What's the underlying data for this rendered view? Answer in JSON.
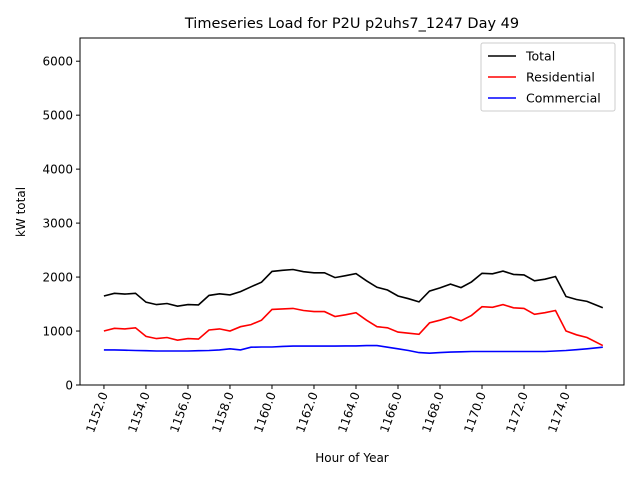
{
  "chart_data": {
    "type": "line",
    "title": "Timeseries Load for P2U p2uhs7_1247  Day 49",
    "xlabel": "Hour of Year",
    "ylabel": "kW total",
    "xlim": [
      1150.86,
      1176.76
    ],
    "ylim": [
      0,
      6430
    ],
    "xticks": [
      1152,
      1154,
      1156,
      1158,
      1160,
      1162,
      1164,
      1166,
      1168,
      1170,
      1172,
      1174
    ],
    "xtick_labels": [
      "1152.0",
      "1154.0",
      "1156.0",
      "1158.0",
      "1160.0",
      "1162.0",
      "1164.0",
      "1166.0",
      "1168.0",
      "1170.0",
      "1172.0",
      "1174.0"
    ],
    "yticks": [
      0,
      1000,
      2000,
      3000,
      4000,
      5000,
      6000
    ],
    "ytick_labels": [
      "0",
      "1000",
      "2000",
      "3000",
      "4000",
      "5000",
      "6000"
    ],
    "grid": false,
    "legend_position": "top-right",
    "x": [
      1152,
      1152.5,
      1153,
      1153.5,
      1154,
      1154.5,
      1155,
      1155.5,
      1156,
      1156.5,
      1157,
      1157.5,
      1158,
      1158.5,
      1159,
      1159.5,
      1160,
      1160.5,
      1161,
      1161.5,
      1162,
      1162.5,
      1163,
      1163.5,
      1164,
      1164.5,
      1165,
      1165.5,
      1166,
      1166.5,
      1167,
      1167.5,
      1168,
      1168.5,
      1169,
      1169.5,
      1170,
      1170.5,
      1171,
      1171.5,
      1172,
      1172.5,
      1173,
      1173.5,
      1174,
      1174.5,
      1175,
      1175.75
    ],
    "series": [
      {
        "name": "Total",
        "color": "#000000",
        "values": [
          1650,
          1700,
          1685,
          1700,
          1535,
          1490,
          1510,
          1460,
          1490,
          1485,
          1660,
          1690,
          1670,
          1730,
          1820,
          1905,
          2105,
          2125,
          2140,
          2100,
          2080,
          2080,
          1990,
          2025,
          2065,
          1930,
          1810,
          1760,
          1650,
          1600,
          1540,
          1740,
          1800,
          1870,
          1805,
          1910,
          2070,
          2060,
          2110,
          2050,
          2040,
          1930,
          1960,
          2010,
          1640,
          1585,
          1550,
          1430
        ]
      },
      {
        "name": "Residential",
        "color": "#ff0000",
        "values": [
          1000,
          1050,
          1040,
          1060,
          900,
          860,
          880,
          830,
          860,
          850,
          1020,
          1040,
          1000,
          1080,
          1120,
          1200,
          1400,
          1410,
          1420,
          1380,
          1360,
          1360,
          1270,
          1300,
          1340,
          1200,
          1080,
          1060,
          980,
          960,
          940,
          1150,
          1200,
          1260,
          1190,
          1290,
          1450,
          1440,
          1490,
          1430,
          1420,
          1310,
          1340,
          1380,
          1000,
          930,
          880,
          730
        ]
      },
      {
        "name": "Commercial",
        "color": "#0000ff",
        "values": [
          650,
          650,
          645,
          640,
          635,
          630,
          630,
          630,
          630,
          635,
          640,
          650,
          670,
          650,
          700,
          705,
          705,
          715,
          720,
          720,
          720,
          720,
          720,
          725,
          725,
          730,
          730,
          700,
          670,
          640,
          600,
          590,
          600,
          610,
          615,
          620,
          620,
          620,
          620,
          620,
          620,
          620,
          620,
          630,
          640,
          655,
          670,
          700
        ]
      }
    ]
  }
}
